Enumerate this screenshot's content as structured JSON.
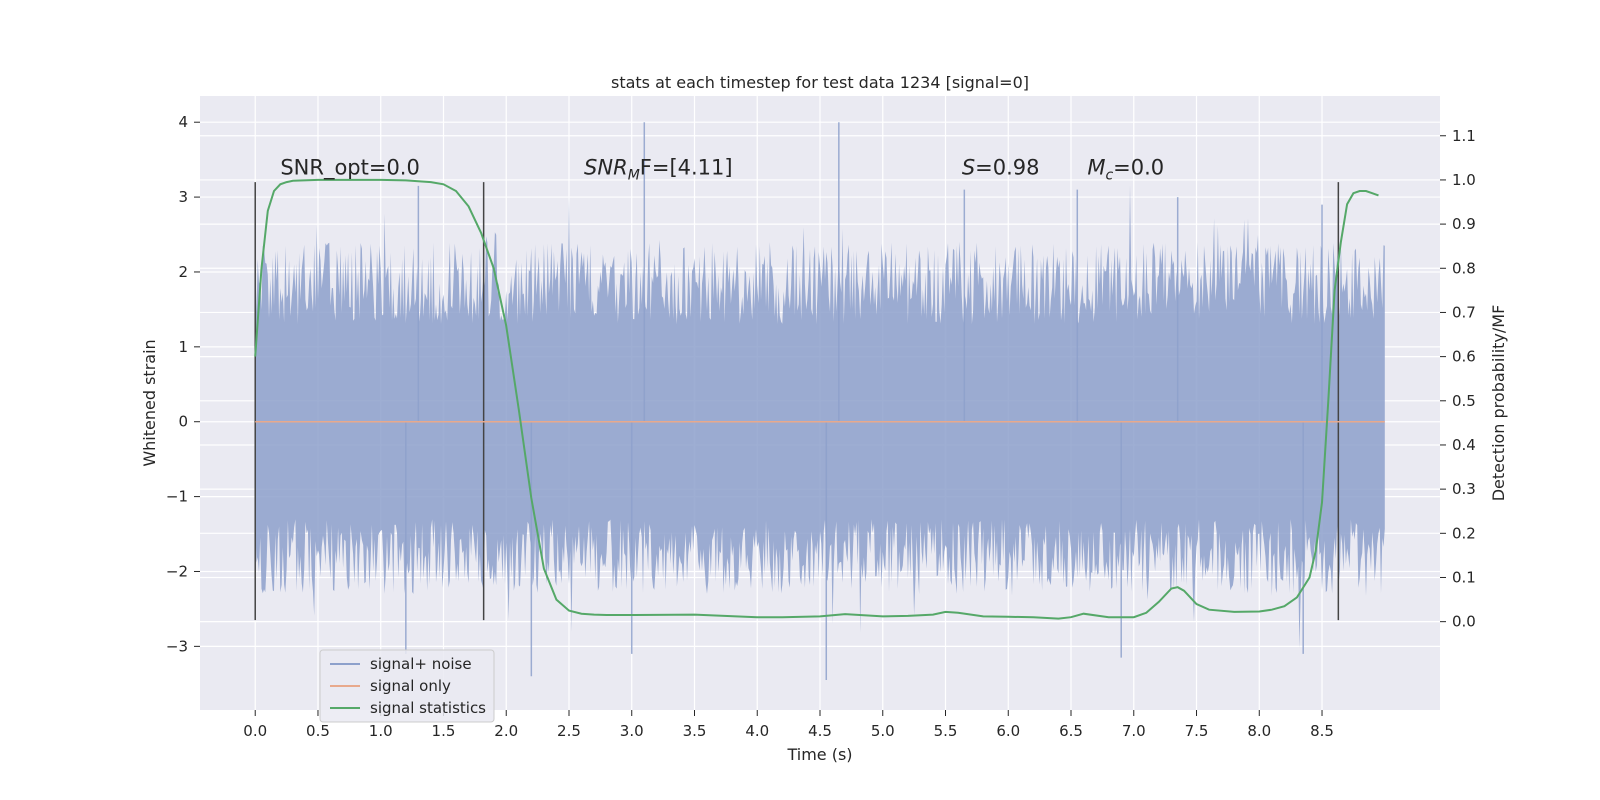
{
  "chart_data": {
    "type": "line",
    "title": "stats at each timestep for test data 1234 [signal=0]",
    "xlabel": "Time (s)",
    "ylabel": "Whitened strain",
    "y2label": "Detection probability/MF",
    "xlim": [
      -0.44,
      9.44
    ],
    "ylim": [
      -3.85,
      4.35
    ],
    "y2lim": [
      -0.2,
      1.19
    ],
    "grid": true,
    "xticks": [
      "0.0",
      "0.5",
      "1.0",
      "1.5",
      "2.0",
      "2.5",
      "3.0",
      "3.5",
      "4.0",
      "4.5",
      "5.0",
      "5.5",
      "6.0",
      "6.5",
      "7.0",
      "7.5",
      "8.0",
      "8.5"
    ],
    "xtick_values": [
      0,
      0.5,
      1,
      1.5,
      2,
      2.5,
      3,
      3.5,
      4,
      4.5,
      5,
      5.5,
      6,
      6.5,
      7,
      7.5,
      8,
      8.5
    ],
    "yticks": [
      "−3",
      "−2",
      "−1",
      "0",
      "1",
      "2",
      "3",
      "4"
    ],
    "ytick_values": [
      -3,
      -2,
      -1,
      0,
      1,
      2,
      3,
      4
    ],
    "y2ticks": [
      "0.0",
      "0.1",
      "0.2",
      "0.3",
      "0.4",
      "0.5",
      "0.6",
      "0.7",
      "0.8",
      "0.9",
      "1.0",
      "1.1"
    ],
    "y2tick_values": [
      0,
      0.1,
      0.2,
      0.3,
      0.4,
      0.5,
      0.6,
      0.7,
      0.8,
      0.9,
      1.0,
      1.1
    ],
    "noise": {
      "x_start": 0.0,
      "x_end": 9.0,
      "amplitude_sd": 0.95,
      "max": 4.0,
      "min": -3.45
    },
    "series": [
      {
        "name": "signal+ noise",
        "color": "#8da0cb",
        "axis": "left"
      },
      {
        "name": "signal only",
        "color": "#e8a98c",
        "axis": "left",
        "x": [
          0,
          9
        ],
        "y": [
          0,
          0
        ]
      },
      {
        "name": "signal statistics",
        "color": "#55a868",
        "axis": "right",
        "x": [
          0,
          0.05,
          0.1,
          0.15,
          0.2,
          0.25,
          0.3,
          0.5,
          0.8,
          1.0,
          1.2,
          1.4,
          1.5,
          1.6,
          1.7,
          1.8,
          1.9,
          2.0,
          2.1,
          2.2,
          2.3,
          2.4,
          2.5,
          2.6,
          2.7,
          2.8,
          3.0,
          3.5,
          4.0,
          4.2,
          4.5,
          4.7,
          5.0,
          5.2,
          5.4,
          5.5,
          5.6,
          5.8,
          6.0,
          6.2,
          6.4,
          6.5,
          6.6,
          6.8,
          7.0,
          7.1,
          7.2,
          7.3,
          7.35,
          7.4,
          7.5,
          7.6,
          7.8,
          8.0,
          8.1,
          8.2,
          8.3,
          8.4,
          8.45,
          8.5,
          8.55,
          8.6,
          8.65,
          8.7,
          8.75,
          8.8,
          8.85,
          8.9,
          8.95
        ],
        "y": [
          0.6,
          0.8,
          0.93,
          0.975,
          0.99,
          0.995,
          0.998,
          1.0,
          1.0,
          1.0,
          0.999,
          0.995,
          0.99,
          0.975,
          0.94,
          0.88,
          0.8,
          0.67,
          0.48,
          0.28,
          0.12,
          0.05,
          0.025,
          0.018,
          0.016,
          0.015,
          0.015,
          0.016,
          0.01,
          0.01,
          0.012,
          0.017,
          0.012,
          0.013,
          0.016,
          0.022,
          0.02,
          0.012,
          0.011,
          0.01,
          0.007,
          0.01,
          0.018,
          0.01,
          0.01,
          0.02,
          0.045,
          0.075,
          0.078,
          0.07,
          0.04,
          0.027,
          0.022,
          0.023,
          0.027,
          0.035,
          0.055,
          0.1,
          0.16,
          0.27,
          0.5,
          0.75,
          0.86,
          0.945,
          0.97,
          0.975,
          0.975,
          0.97,
          0.965
        ]
      }
    ],
    "vlines": [
      0.0,
      1.82,
      8.63
    ],
    "vline_ylim": [
      -2.65,
      3.2
    ],
    "annotations": [
      {
        "text": "SNR_opt=0.0",
        "x": 0.2
      },
      {
        "text_main": "SNR",
        "text_sub": "M",
        "text_rest": "F=[4.11]",
        "x": 2.62
      },
      {
        "text_main": "S",
        "text_rest": "=0.98",
        "x": 5.63
      },
      {
        "text_main": "M",
        "text_sub": "c",
        "text_rest": "=0.0",
        "x": 6.63
      }
    ],
    "annotation_y": 3.3,
    "legend_position": "lower-left",
    "legend": [
      "signal+ noise",
      "signal only",
      "signal statistics"
    ]
  }
}
